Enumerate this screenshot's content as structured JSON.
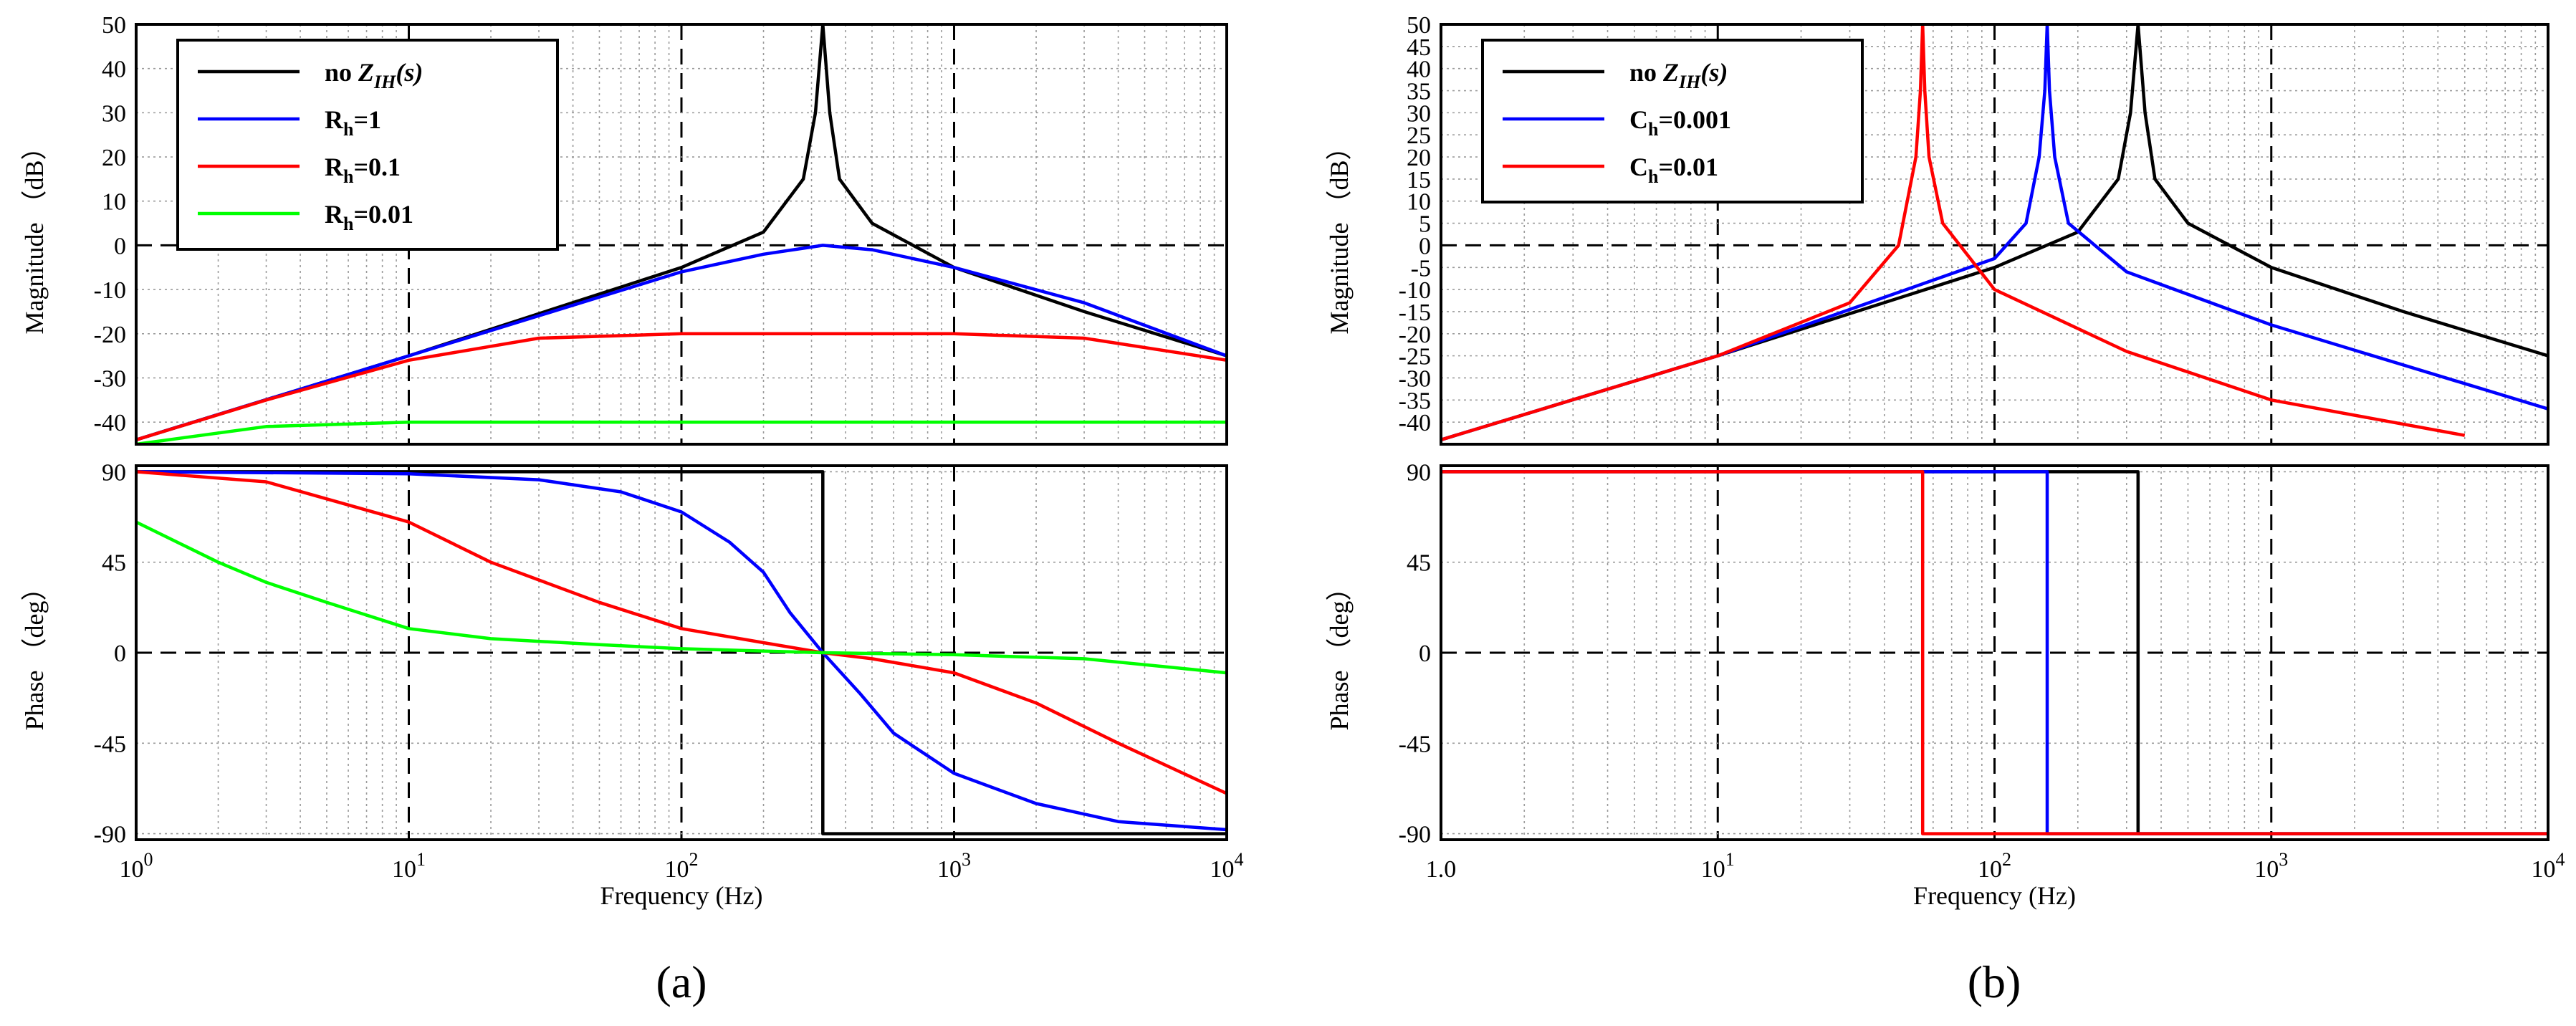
{
  "chart_data": [
    {
      "id": "a",
      "type": "line",
      "subplot_label": "(a)",
      "xscale": "log",
      "xlim": [
        1,
        10000
      ],
      "xticks": [
        {
          "value": 1,
          "base": "10",
          "exp": "0"
        },
        {
          "value": 10,
          "base": "10",
          "exp": "1"
        },
        {
          "value": 100,
          "base": "10",
          "exp": "2"
        },
        {
          "value": 1000,
          "base": "10",
          "exp": "3"
        },
        {
          "value": 10000,
          "base": "10",
          "exp": "4"
        }
      ],
      "xlabel": "Frequency (Hz)",
      "magnitude": {
        "ylabel": "Magnitude （dB）",
        "ylim": [
          -45,
          50
        ],
        "yticks": [
          50,
          40,
          30,
          20,
          10,
          0,
          -10,
          -20,
          -30,
          -40
        ],
        "ytick_labels": [
          "50",
          "40",
          "30",
          "20",
          "10",
          "0",
          "-10",
          "-20",
          "-30",
          "-40"
        ],
        "series": [
          {
            "name": "no Z_IH(s)",
            "color": "#000000",
            "x": [
              1,
              10,
              100,
              200,
              280,
              310,
              330,
              350,
              380,
              500,
              1000,
              3000,
              10000
            ],
            "y": [
              -44,
              -25,
              -5,
              3,
              15,
              30,
              50,
              30,
              15,
              5,
              -5,
              -15,
              -25
            ]
          },
          {
            "name": "R_h=1",
            "color": "#0000ff",
            "x": [
              1,
              10,
              100,
              200,
              330,
              500,
              1000,
              3000,
              10000
            ],
            "y": [
              -44,
              -25,
              -6,
              -2,
              0,
              -1,
              -5,
              -13,
              -25
            ]
          },
          {
            "name": "R_h=0.1",
            "color": "#ff0000",
            "x": [
              1,
              3,
              10,
              30,
              100,
              330,
              1000,
              3000,
              10000
            ],
            "y": [
              -44,
              -35,
              -26,
              -21,
              -20,
              -20,
              -20,
              -21,
              -26
            ]
          },
          {
            "name": "R_h=0.01",
            "color": "#00ff00",
            "x": [
              1,
              3,
              10,
              100,
              1000,
              10000
            ],
            "y": [
              -45,
              -41,
              -40,
              -40,
              -40,
              -40
            ]
          }
        ]
      },
      "phase": {
        "ylabel": "Phase （deg）",
        "ylim": [
          -93,
          93
        ],
        "yticks": [
          90,
          45,
          0,
          -45,
          -90
        ],
        "ytick_labels": [
          "90",
          "45",
          "0",
          "-45",
          "-90"
        ],
        "series": [
          {
            "name": "no Z_IH(s)",
            "color": "#000000",
            "x": [
              1,
              330,
              330,
              10000
            ],
            "y": [
              90,
              90,
              -90,
              -90
            ]
          },
          {
            "name": "R_h=1",
            "color": "#0000ff",
            "x": [
              1,
              10,
              30,
              60,
              100,
              150,
              200,
              250,
              330,
              450,
              600,
              1000,
              2000,
              4000,
              10000
            ],
            "y": [
              90,
              89,
              86,
              80,
              70,
              55,
              40,
              20,
              0,
              -20,
              -40,
              -60,
              -75,
              -84,
              -88
            ]
          },
          {
            "name": "R_h=0.1",
            "color": "#ff0000",
            "x": [
              1,
              3,
              10,
              20,
              50,
              100,
              200,
              330,
              500,
              1000,
              2000,
              4000,
              10000
            ],
            "y": [
              90,
              85,
              65,
              45,
              25,
              12,
              5,
              0,
              -3,
              -10,
              -25,
              -45,
              -70
            ]
          },
          {
            "name": "R_h=0.01",
            "color": "#00ff00",
            "x": [
              1,
              2,
              3,
              5,
              10,
              20,
              50,
              100,
              330,
              1000,
              3000,
              10000
            ],
            "y": [
              65,
              45,
              35,
              25,
              12,
              7,
              4,
              2,
              0,
              -1,
              -3,
              -10
            ]
          }
        ]
      },
      "legend": {
        "position": "top-left",
        "entries": [
          {
            "label": "no ",
            "math": "Z",
            "sub": "IH",
            "tail": "(s)",
            "color": "#000000"
          },
          {
            "label": "R",
            "math": "",
            "sub": "h",
            "tail": "=1",
            "color": "#0000ff"
          },
          {
            "label": "R",
            "math": "",
            "sub": "h",
            "tail": "=0.1",
            "color": "#ff0000"
          },
          {
            "label": "R",
            "math": "",
            "sub": "h",
            "tail": "=0.01",
            "color": "#00ff00"
          }
        ]
      }
    },
    {
      "id": "b",
      "type": "line",
      "subplot_label": "(b)",
      "xscale": "log",
      "xlim": [
        1,
        10000
      ],
      "xticks": [
        {
          "value": 1,
          "label": "1.0"
        },
        {
          "value": 10,
          "base": "10",
          "exp": "1"
        },
        {
          "value": 100,
          "base": "10",
          "exp": "2"
        },
        {
          "value": 1000,
          "base": "10",
          "exp": "3"
        },
        {
          "value": 10000,
          "base": "10",
          "exp": "4"
        }
      ],
      "xlabel": "Frequency (Hz)",
      "magnitude": {
        "ylabel": "Magnitude （dB）",
        "ylim": [
          -45,
          50
        ],
        "yticks": [
          50,
          45,
          40,
          35,
          30,
          25,
          20,
          15,
          10,
          5,
          0,
          -5,
          -10,
          -15,
          -20,
          -25,
          -30,
          -35,
          -40
        ],
        "ytick_labels": [
          "50",
          "45",
          "40",
          "35",
          "30",
          "25",
          "20",
          "15",
          "10",
          "5",
          "0",
          "-5",
          "-10",
          "-15",
          "-20",
          "-25",
          "-30",
          "-35",
          "-40"
        ],
        "series": [
          {
            "name": "no Z_IH(s)",
            "color": "#000000",
            "x": [
              1,
              10,
              100,
              200,
              280,
              310,
              330,
              350,
              380,
              500,
              1000,
              3000,
              10000
            ],
            "y": [
              -44,
              -25,
              -5,
              3,
              15,
              30,
              50,
              30,
              15,
              5,
              -5,
              -15,
              -25
            ]
          },
          {
            "name": "C_h=0.001",
            "color": "#0000ff",
            "x": [
              1,
              10,
              100,
              130,
              145,
              152,
              155,
              158,
              165,
              185,
              300,
              1000,
              10000
            ],
            "y": [
              -44,
              -25,
              -3,
              5,
              20,
              35,
              50,
              35,
              20,
              5,
              -6,
              -18,
              -37
            ]
          },
          {
            "name": "C_h=0.01",
            "color": "#ff0000",
            "x": [
              1,
              10,
              30,
              45,
              52,
              54,
              55,
              56,
              58,
              65,
              100,
              300,
              1000,
              5000
            ],
            "y": [
              -44,
              -25,
              -13,
              0,
              20,
              35,
              50,
              35,
              20,
              5,
              -10,
              -24,
              -35,
              -43
            ]
          }
        ]
      },
      "phase": {
        "ylabel": "Phase （deg）",
        "ylim": [
          -93,
          93
        ],
        "yticks": [
          90,
          45,
          0,
          -45,
          -90
        ],
        "ytick_labels": [
          "90",
          "45",
          "0",
          "-45",
          "-90"
        ],
        "series": [
          {
            "name": "no Z_IH(s)",
            "color": "#000000",
            "x": [
              1,
              330,
              330,
              10000
            ],
            "y": [
              90,
              90,
              -90,
              -90
            ]
          },
          {
            "name": "C_h=0.001",
            "color": "#0000ff",
            "x": [
              1,
              155,
              155,
              10000
            ],
            "y": [
              90,
              90,
              -90,
              -90
            ]
          },
          {
            "name": "C_h=0.01",
            "color": "#ff0000",
            "x": [
              1,
              55,
              55,
              10000
            ],
            "y": [
              90,
              90,
              -90,
              -90
            ]
          }
        ]
      },
      "legend": {
        "position": "top-left",
        "entries": [
          {
            "label": "no ",
            "math": "Z",
            "sub": "IH",
            "tail": "(s)",
            "color": "#000000"
          },
          {
            "label": "C",
            "math": "",
            "sub": "h",
            "tail": "=0.001",
            "color": "#0000ff"
          },
          {
            "label": "C",
            "math": "",
            "sub": "h",
            "tail": "=0.01",
            "color": "#ff0000"
          }
        ]
      }
    }
  ]
}
